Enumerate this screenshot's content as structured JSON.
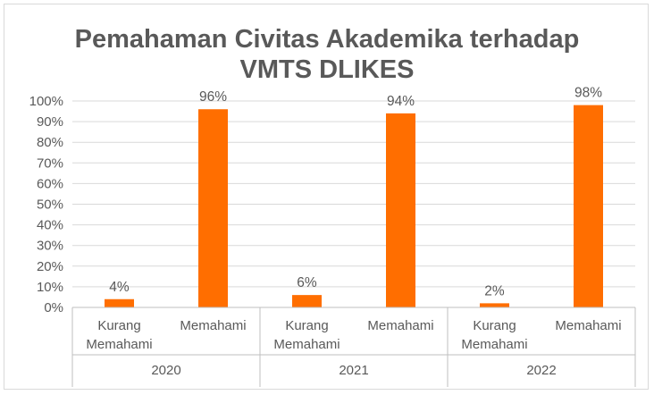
{
  "chart_data": {
    "type": "bar",
    "title": "Pemahaman Civitas Akademika terhadap VMTS DLIKES",
    "title_lines": [
      "Pemahaman Civitas Akademika terhadap",
      "VMTS DLIKES"
    ],
    "xlabel": "",
    "ylabel": "",
    "ylim": [
      0,
      100
    ],
    "y_ticks": [
      "0%",
      "10%",
      "20%",
      "30%",
      "40%",
      "50%",
      "60%",
      "70%",
      "80%",
      "90%",
      "100%"
    ],
    "grid": true,
    "legend": "none",
    "groups": [
      {
        "label": "2020",
        "bars": [
          {
            "category": [
              "Kurang",
              "Memahami"
            ],
            "value": 4,
            "label": "4%"
          },
          {
            "category": [
              "Memahami"
            ],
            "value": 96,
            "label": "96%"
          }
        ]
      },
      {
        "label": "2021",
        "bars": [
          {
            "category": [
              "Kurang",
              "Memahami"
            ],
            "value": 6,
            "label": "6%"
          },
          {
            "category": [
              "Memahami"
            ],
            "value": 94,
            "label": "94%"
          }
        ]
      },
      {
        "label": "2022",
        "bars": [
          {
            "category": [
              "Kurang",
              "Memahami"
            ],
            "value": 2,
            "label": "2%"
          },
          {
            "category": [
              "Memahami"
            ],
            "value": 98,
            "label": "98%"
          }
        ]
      }
    ]
  },
  "colors": {
    "bar": "#ff6e00",
    "grid": "#d9d9d9",
    "axis": "#bfbfbf",
    "text": "#595959"
  }
}
